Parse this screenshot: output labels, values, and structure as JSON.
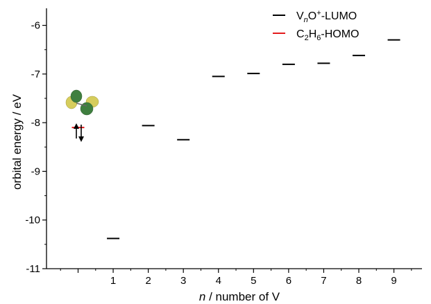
{
  "chart_data": {
    "type": "scatter",
    "marker": "horizontal-dash",
    "xlabel_italic": "n",
    "xlabel_rest": " / number of V",
    "ylabel": "orbital energy / eV",
    "xlim": [
      -0.9,
      9.8
    ],
    "ylim": [
      -11,
      -5.65
    ],
    "x_ticks": [
      1,
      2,
      3,
      4,
      5,
      6,
      7,
      8,
      9
    ],
    "y_ticks": [
      -11,
      -10,
      -9,
      -8,
      -7,
      -6
    ],
    "x_tick_labels": [
      "1",
      "2",
      "3",
      "4",
      "5",
      "6",
      "7",
      "8",
      "9"
    ],
    "y_tick_labels": [
      "-11",
      "-10",
      "-9",
      "-8",
      "-7",
      "-6"
    ],
    "legend_position": "top-right",
    "series": [
      {
        "name": "VnO+-LUMO",
        "color": "#000000",
        "x": [
          1,
          2,
          3,
          4,
          5,
          6,
          7,
          8,
          9
        ],
        "y": [
          -10.38,
          -8.06,
          -8.35,
          -7.05,
          -6.99,
          -6.8,
          -6.78,
          -6.62,
          -6.3
        ]
      },
      {
        "name": "C2H6-HOMO",
        "color": "#e31a1c",
        "x": [
          0
        ],
        "y": [
          -8.1
        ]
      }
    ],
    "legend": [
      {
        "base": "V",
        "sub": "n",
        "sup": "O",
        "sup2": "+",
        "rest": "-LUMO",
        "color": "#000000"
      },
      {
        "base": "C",
        "sub": "2",
        "mid": "H",
        "sub2": "6",
        "rest": "-HOMO",
        "color": "#e31a1c"
      }
    ],
    "annotation": {
      "type": "orbital-lobes-icon",
      "anchor_x": 0,
      "anchor_y": -7.5,
      "colors": [
        "#3f7f3f",
        "#d6cd5c"
      ]
    }
  }
}
